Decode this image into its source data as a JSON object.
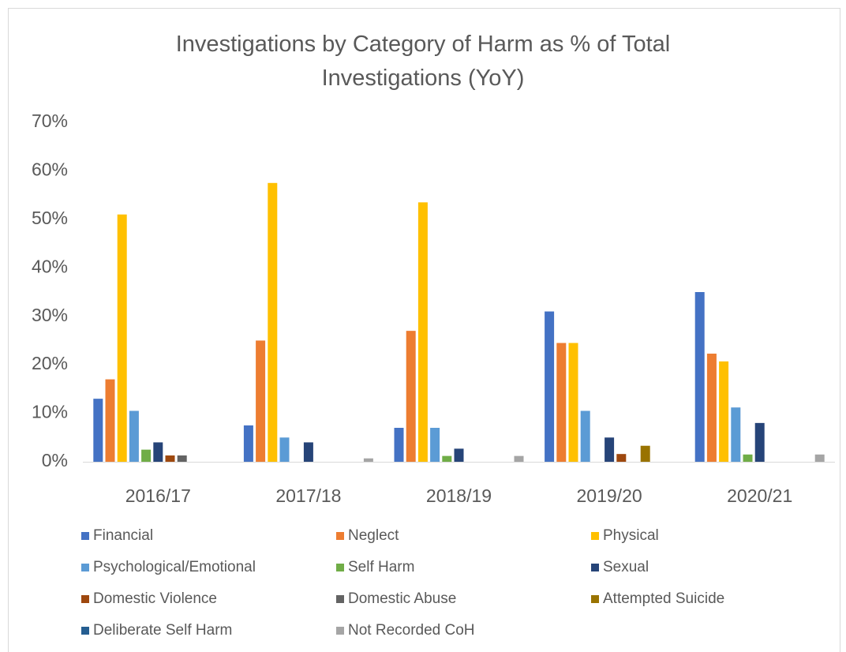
{
  "chart_data": {
    "type": "bar",
    "title": "Investigations by Category of Harm as % of Total Investigations (YoY)",
    "categories": [
      "2016/17",
      "2017/18",
      "2018/19",
      "2019/20",
      "2020/21"
    ],
    "series": [
      {
        "name": "Financial",
        "color": "#4472c4",
        "values": [
          13,
          7.5,
          7,
          31,
          35
        ]
      },
      {
        "name": "Neglect",
        "color": "#ed7d31",
        "values": [
          17,
          25,
          27,
          24.5,
          22.3
        ]
      },
      {
        "name": "Physical",
        "color": "#ffc000",
        "values": [
          51,
          57.5,
          53.5,
          24.5,
          20.7
        ]
      },
      {
        "name": "Psychological/Emotional",
        "color": "#5b9bd5",
        "values": [
          10.5,
          5,
          7,
          10.5,
          11.2
        ]
      },
      {
        "name": "Self Harm",
        "color": "#70ad47",
        "values": [
          2.5,
          0,
          1.2,
          0,
          1.5
        ]
      },
      {
        "name": "Sexual",
        "color": "#264478",
        "values": [
          4,
          4,
          2.7,
          5,
          8
        ]
      },
      {
        "name": "Domestic Violence",
        "color": "#9e480e",
        "values": [
          1.3,
          0,
          0,
          1.6,
          0
        ]
      },
      {
        "name": "Domestic Abuse",
        "color": "#636363",
        "values": [
          1.3,
          0,
          0,
          0,
          0
        ]
      },
      {
        "name": "Attempted Suicide",
        "color": "#997300",
        "values": [
          0,
          0,
          0,
          3.3,
          0
        ]
      },
      {
        "name": "Deliberate Self Harm",
        "color": "#255e91",
        "values": [
          0,
          0,
          0,
          0,
          0
        ]
      },
      {
        "name": "Not Recorded CoH",
        "color": "#a5a5a5",
        "values": [
          0,
          0.7,
          1.2,
          0,
          1.5
        ]
      }
    ],
    "ylim": [
      0,
      70
    ],
    "yticks": [
      {
        "value": 0,
        "label": "0%"
      },
      {
        "value": 10,
        "label": "10%"
      },
      {
        "value": 20,
        "label": "20%"
      },
      {
        "value": 30,
        "label": "30%"
      },
      {
        "value": 40,
        "label": "40%"
      },
      {
        "value": 50,
        "label": "50%"
      },
      {
        "value": 60,
        "label": "60%"
      },
      {
        "value": 70,
        "label": "70%"
      }
    ],
    "grid": false,
    "legend": "bottom"
  }
}
